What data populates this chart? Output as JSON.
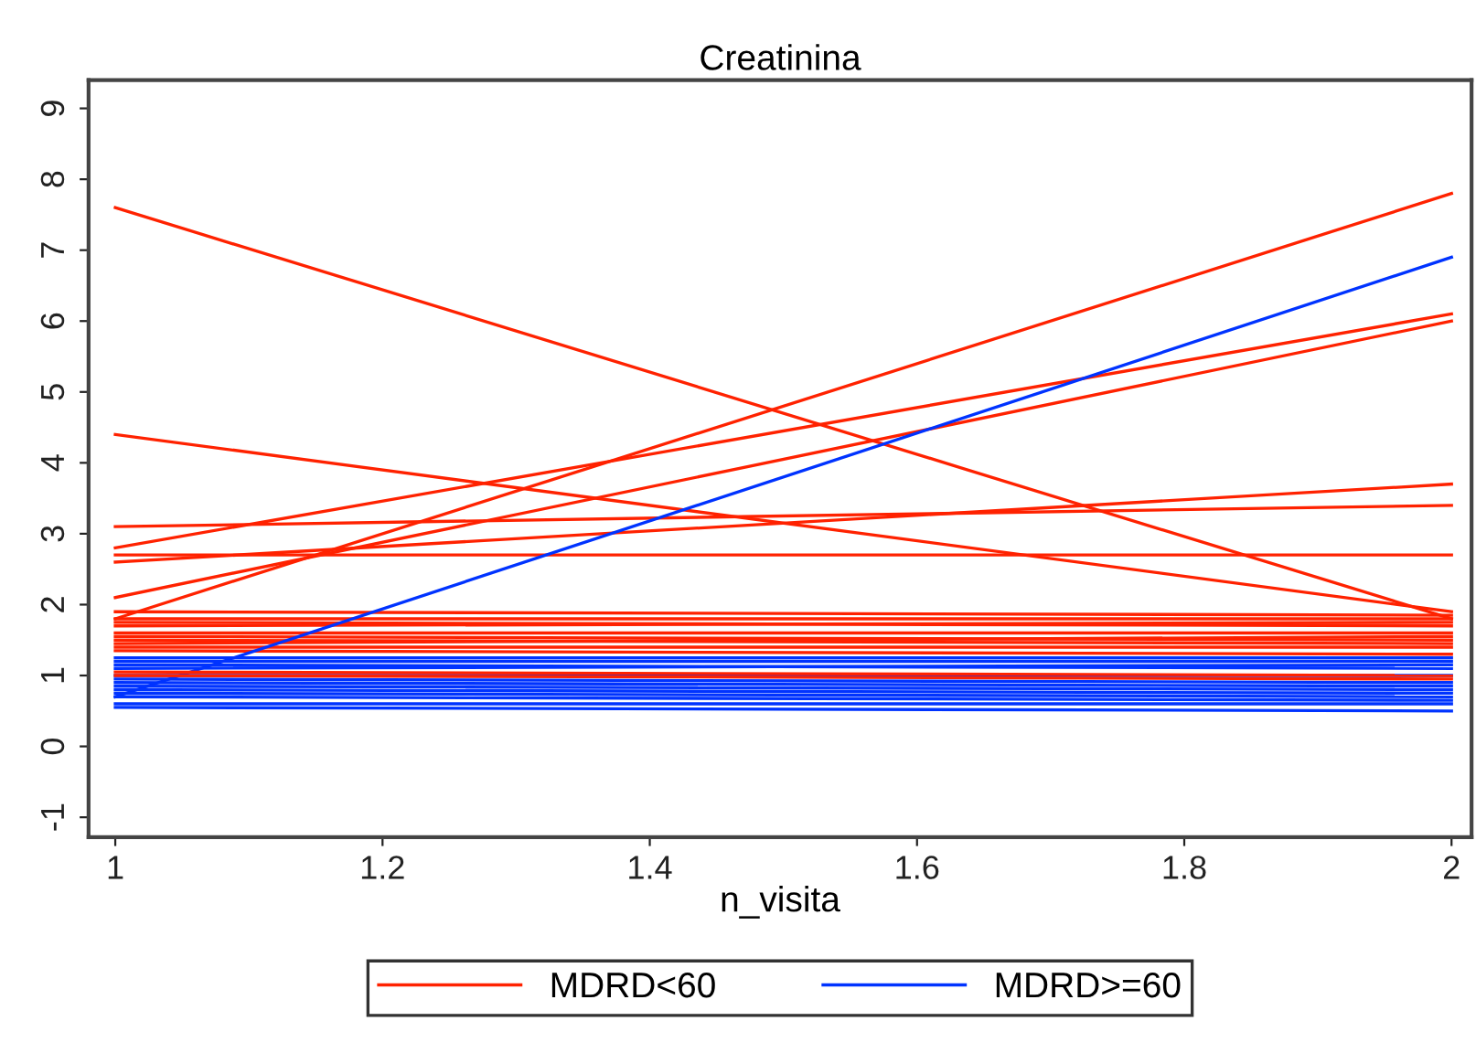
{
  "chart_data": {
    "type": "line",
    "title": "Creatinina",
    "xlabel": "n_visita",
    "x": [
      1,
      2
    ],
    "xlim": [
      0.98,
      2.015
    ],
    "xticks": [
      1,
      1.2,
      1.4,
      1.6,
      1.8,
      2
    ],
    "ylim": [
      -1.28,
      9.4
    ],
    "yticks": [
      -1,
      0,
      1,
      2,
      3,
      4,
      5,
      6,
      7,
      8,
      9
    ],
    "grid": false,
    "legend": "bottom",
    "marker": "none",
    "line_style": "solid",
    "series": [
      {
        "name": "MDRD<60",
        "color": "#ff2200",
        "values": [
          7.6,
          1.8
        ]
      },
      {
        "color": "#ff2200",
        "values": [
          4.4,
          1.9
        ]
      },
      {
        "color": "#ff2200",
        "values": [
          1.8,
          7.8
        ]
      },
      {
        "color": "#ff2200",
        "values": [
          2.8,
          6.1
        ]
      },
      {
        "color": "#ff2200",
        "values": [
          2.1,
          6.0
        ]
      },
      {
        "color": "#ff2200",
        "values": [
          3.1,
          3.4
        ]
      },
      {
        "color": "#ff2200",
        "values": [
          2.6,
          3.7
        ]
      },
      {
        "color": "#ff2200",
        "values": [
          2.7,
          2.7
        ]
      },
      {
        "color": "#ff2200",
        "values": [
          1.9,
          1.85
        ]
      },
      {
        "color": "#ff2200",
        "values": [
          1.8,
          1.8
        ]
      },
      {
        "color": "#ff2200",
        "values": [
          1.75,
          1.7
        ]
      },
      {
        "color": "#ff2200",
        "values": [
          1.7,
          1.75
        ]
      },
      {
        "color": "#ff2200",
        "values": [
          1.6,
          1.6
        ]
      },
      {
        "color": "#ff2200",
        "values": [
          1.55,
          1.5
        ]
      },
      {
        "color": "#ff2200",
        "values": [
          1.5,
          1.45
        ]
      },
      {
        "color": "#ff2200",
        "values": [
          1.45,
          1.55
        ]
      },
      {
        "color": "#ff2200",
        "values": [
          1.4,
          1.4
        ]
      },
      {
        "color": "#ff2200",
        "values": [
          1.35,
          1.3
        ]
      },
      {
        "name": "MDRD>=60",
        "color": "#0033ff",
        "values": [
          0.7,
          6.9
        ]
      },
      {
        "color": "#0033ff",
        "values": [
          1.25,
          1.25
        ]
      },
      {
        "color": "#0033ff",
        "values": [
          1.2,
          1.2
        ]
      },
      {
        "color": "#0033ff",
        "values": [
          1.15,
          1.1
        ]
      },
      {
        "color": "#0033ff",
        "values": [
          1.1,
          1.15
        ]
      },
      {
        "color": "#0033ff",
        "values": [
          1.0,
          1.0
        ]
      },
      {
        "color": "#0033ff",
        "values": [
          0.95,
          0.9
        ]
      },
      {
        "color": "#0033ff",
        "values": [
          0.9,
          0.85
        ]
      },
      {
        "color": "#0033ff",
        "values": [
          0.85,
          0.8
        ]
      },
      {
        "color": "#0033ff",
        "values": [
          0.8,
          0.75
        ]
      },
      {
        "color": "#0033ff",
        "values": [
          0.75,
          0.7
        ]
      },
      {
        "color": "#0033ff",
        "values": [
          0.7,
          0.65
        ]
      },
      {
        "color": "#0033ff",
        "values": [
          0.6,
          0.6
        ]
      },
      {
        "color": "#0033ff",
        "values": [
          0.55,
          0.5
        ]
      },
      {
        "color": "#ff2200",
        "values": [
          1.05,
          1.0
        ]
      },
      {
        "color": "#ff2200",
        "values": [
          1.0,
          0.95
        ]
      }
    ]
  }
}
